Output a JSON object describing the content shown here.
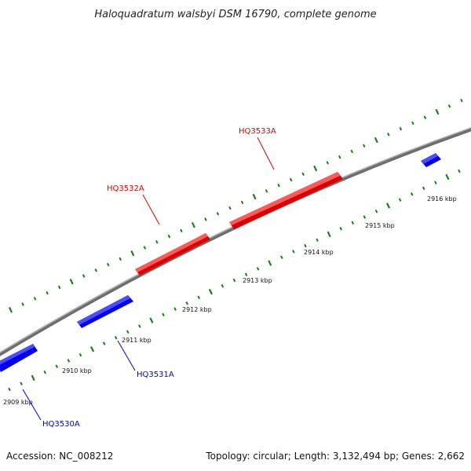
{
  "title": "Haloquadratum walsbyi DSM 16790, complete genome",
  "footer": {
    "accession": "Accession: NC_008212",
    "summary": "Topology: circular; Length: 3,132,494 bp; Genes: 2,662"
  },
  "colors": {
    "forward_gene": "#ff0000",
    "reverse_gene": "#0000ff",
    "backbone": "#7f7f7f",
    "ticks": "#1a7f1a"
  },
  "scale_labels": [
    "2909 kbp",
    "2910 kbp",
    "2911 kbp",
    "2912 kbp",
    "2913 kbp",
    "2914 kbp",
    "2915 kbp",
    "2916 kbp"
  ],
  "genes": [
    {
      "label": "HQ3530A",
      "strand": "reverse"
    },
    {
      "label": "HQ3531A",
      "strand": "reverse"
    },
    {
      "label": "HQ3532A",
      "strand": "forward"
    },
    {
      "label": "HQ3533A",
      "strand": "forward"
    }
  ]
}
